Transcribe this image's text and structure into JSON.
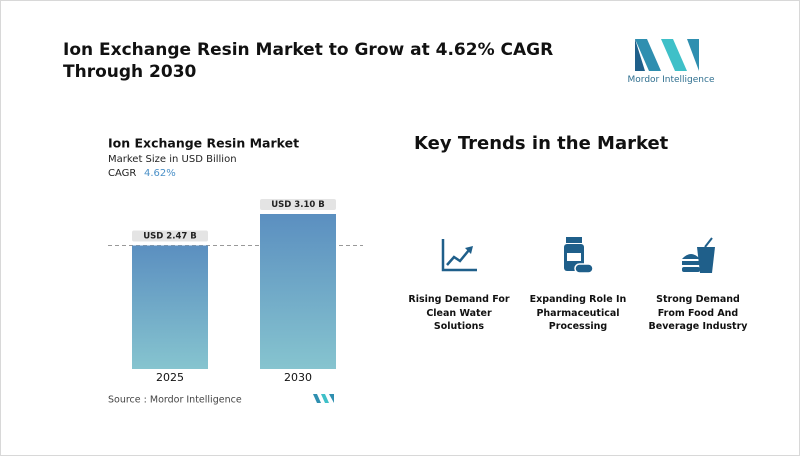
{
  "header": {
    "title": "Ion Exchange Resin Market to Grow at 4.62% CAGR Through 2030",
    "logo_text": "Mordor Intelligence"
  },
  "chart_data": {
    "type": "bar",
    "title": "Ion Exchange Resin Market",
    "subtitle": "Market Size in USD Billion",
    "cagr_label": "CAGR",
    "cagr_value": "4.62%",
    "categories": [
      "2025",
      "2030"
    ],
    "values": [
      2.47,
      3.1
    ],
    "value_labels": [
      "USD 2.47 B",
      "USD 3.10 B"
    ],
    "color": "#5f97c3",
    "source": "Source : Mordor Intelligence"
  },
  "trends": {
    "title": "Key Trends in the Market",
    "items": [
      "Rising Demand For Clean Water Solutions",
      "Expanding Role In Pharmaceutical Processing",
      "Strong Demand From Food And Beverage Industry"
    ]
  }
}
